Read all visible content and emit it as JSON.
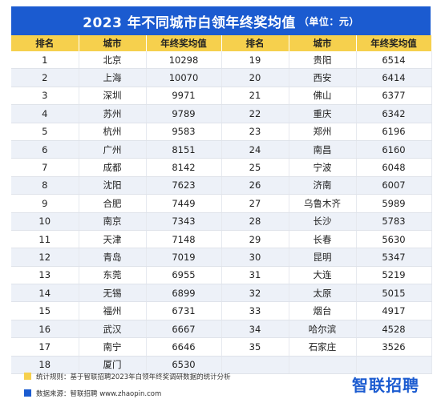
{
  "title": "2023 年不同城市白领年终奖均值",
  "title_unit": "（单位：元）",
  "chart_data": {
    "type": "table",
    "columns": [
      "排名",
      "城市",
      "年终奖均值"
    ],
    "rows": [
      {
        "rank": "1",
        "city": "北京",
        "value": 10298
      },
      {
        "rank": "2",
        "city": "上海",
        "value": 10070
      },
      {
        "rank": "3",
        "city": "深圳",
        "value": 9971
      },
      {
        "rank": "4",
        "city": "苏州",
        "value": 9789
      },
      {
        "rank": "5",
        "city": "杭州",
        "value": 9583
      },
      {
        "rank": "6",
        "city": "广州",
        "value": 8151
      },
      {
        "rank": "7",
        "city": "成都",
        "value": 8142
      },
      {
        "rank": "8",
        "city": "沈阳",
        "value": 7623
      },
      {
        "rank": "9",
        "city": "合肥",
        "value": 7449
      },
      {
        "rank": "10",
        "city": "南京",
        "value": 7343
      },
      {
        "rank": "11",
        "city": "天津",
        "value": 7148
      },
      {
        "rank": "12",
        "city": "青岛",
        "value": 7019
      },
      {
        "rank": "13",
        "city": "东莞",
        "value": 6955
      },
      {
        "rank": "14",
        "city": "无锡",
        "value": 6899
      },
      {
        "rank": "15",
        "city": "福州",
        "value": 6731
      },
      {
        "rank": "16",
        "city": "武汉",
        "value": 6667
      },
      {
        "rank": "17",
        "city": "南宁",
        "value": 6646
      },
      {
        "rank": "18",
        "city": "厦门",
        "value": 6530
      },
      {
        "rank": "19",
        "city": "贵阳",
        "value": 6514
      },
      {
        "rank": "20",
        "city": "西安",
        "value": 6414
      },
      {
        "rank": "21",
        "city": "佛山",
        "value": 6377
      },
      {
        "rank": "22",
        "city": "重庆",
        "value": 6342
      },
      {
        "rank": "23",
        "city": "郑州",
        "value": 6196
      },
      {
        "rank": "24",
        "city": "南昌",
        "value": 6160
      },
      {
        "rank": "25",
        "city": "宁波",
        "value": 6048
      },
      {
        "rank": "26",
        "city": "济南",
        "value": 6007
      },
      {
        "rank": "27",
        "city": "乌鲁木齐",
        "value": 5989
      },
      {
        "rank": "28",
        "city": "长沙",
        "value": 5783
      },
      {
        "rank": "29",
        "city": "长春",
        "value": 5630
      },
      {
        "rank": "30",
        "city": "昆明",
        "value": 5347
      },
      {
        "rank": "31",
        "city": "大连",
        "value": 5219
      },
      {
        "rank": "32",
        "city": "太原",
        "value": 5015
      },
      {
        "rank": "33",
        "city": "烟台",
        "value": 4917
      },
      {
        "rank": "34",
        "city": "哈尔滨",
        "value": 4528
      },
      {
        "rank": "35",
        "city": "石家庄",
        "value": 3526
      }
    ]
  },
  "footer": {
    "note1": "统计规则：基于智联招聘2023年白领年终奖调研数据的统计分析",
    "note2": "数据来源：智联招聘 www.zhaopin.com",
    "logo": "智联招聘"
  },
  "colors": {
    "title_bg": "#1b5bd0",
    "header_bg": "#f6d04d",
    "row_alt": "#edf1f8"
  }
}
